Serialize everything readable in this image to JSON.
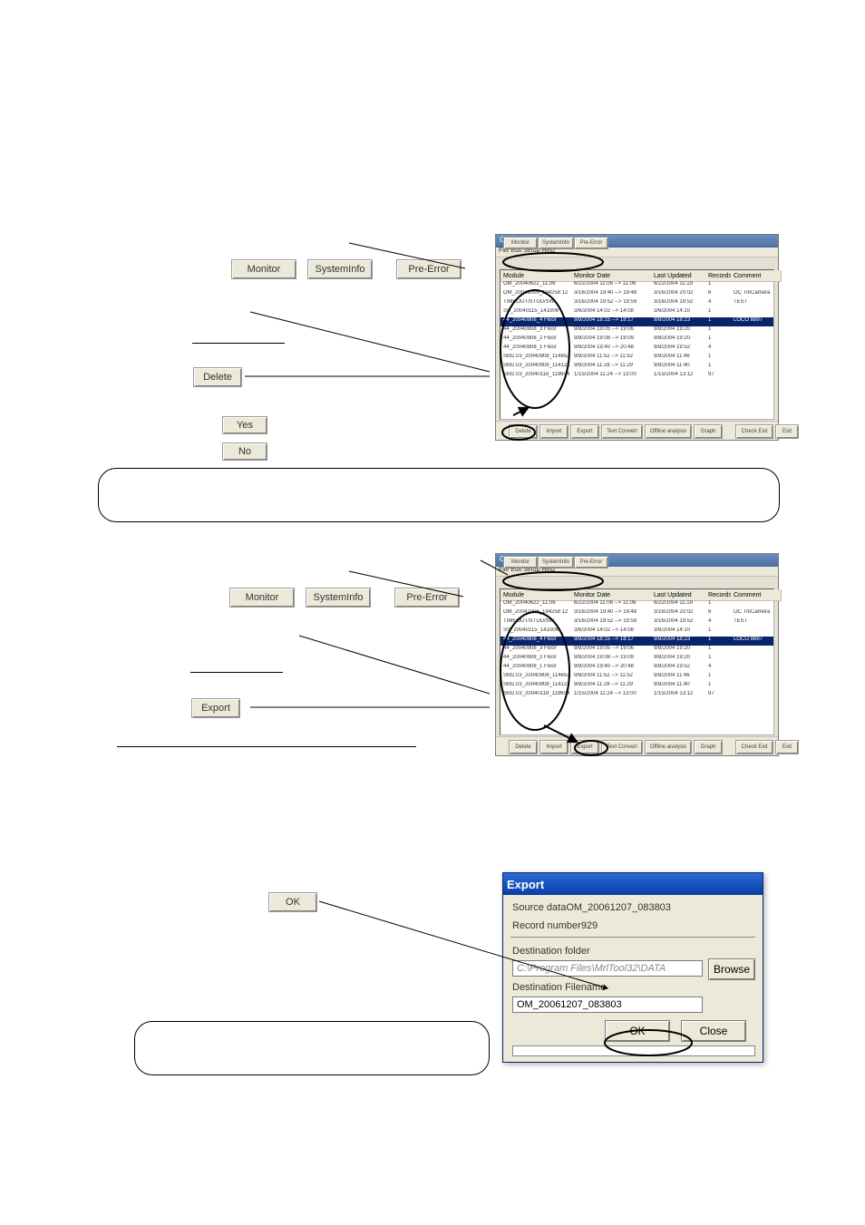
{
  "palette": {
    "button_bg": "#ece9d8",
    "titlebar_gradient": [
      "#2a6ad4",
      "#0a3da6"
    ],
    "selection": "#0a246a",
    "border": "#9a9a9a"
  },
  "section_delete": {
    "tabs": {
      "monitor": "Monitor",
      "systeminfo": "SystemInfo",
      "preerror": "Pre-Error"
    },
    "yn": {
      "yes": "Yes",
      "no": "No"
    },
    "delete": "Delete",
    "app": {
      "title": "Offline Analysis",
      "menu": "File  Edit  Setup  Help",
      "tabs": {
        "monitor": "Monitor",
        "systeminfo": "SystemInfo",
        "preerror": "Pre-Error"
      },
      "columns": {
        "module": "Module",
        "monitor_date": "Monitor Date",
        "last_update": "Last Updated",
        "records": "Records",
        "comment": "Comment"
      },
      "rows": [
        {
          "mod": "OM_20040622_11:06",
          "date": "6/22/2004 11:06 --> 11:06",
          "last": "6/22/2004 11:19",
          "rec": "1",
          "cmt": ""
        },
        {
          "mod": "OM_20041006_194258 12",
          "date": "3/16/2004 19:40 --> 19:48",
          "last": "3/16/2004 20:02",
          "rec": "6",
          "cmt": "OC TrkCamera"
        },
        {
          "mod": "TIMEOUT/STUD/SW",
          "date": "3/16/2004 19:52 --> 19:59",
          "last": "3/16/2004 19:52",
          "rec": "4",
          "cmt": "TEST"
        },
        {
          "mod": "SS_20040115_141006",
          "date": "3/6/2004 14:02 --> 14:08",
          "last": "3/6/2004 14:10",
          "rec": "1",
          "cmt": ""
        },
        {
          "mod": "44_20040908_4 Floor",
          "date": "9/8/2004 18:15 --> 18:17",
          "last": "9/8/2004 18:23",
          "rec": "1",
          "cmt": "LOCO 8897",
          "sel": true
        },
        {
          "mod": "44_20040908_3 Floor",
          "date": "9/8/2004 19:05 --> 19:06",
          "last": "9/8/2004 19:20",
          "rec": "1",
          "cmt": ""
        },
        {
          "mod": "44_20040908_2 Floor",
          "date": "9/8/2004 19:08 --> 19:09",
          "last": "9/8/2004 19:20",
          "rec": "1",
          "cmt": ""
        },
        {
          "mod": "44_20040908_1 Floor",
          "date": "9/8/2004 19:40 --> 20:48",
          "last": "9/8/2004 19:52",
          "rec": "4",
          "cmt": ""
        },
        {
          "mod": "SM2.03_20040908_114652",
          "date": "9/8/2004 11:52 --> 11:52",
          "last": "9/8/2004 11:46",
          "rec": "1",
          "cmt": ""
        },
        {
          "mod": "SM2.03_20040908_114121",
          "date": "9/8/2004 11:28 --> 11:29",
          "last": "9/8/2004 11:40",
          "rec": "1",
          "cmt": ""
        },
        {
          "mod": "SM2.03_20040118_119604",
          "date": "1/15/2004 11:24 --> 13:00",
          "last": "1/15/2004 13:12",
          "rec": "97",
          "cmt": ""
        }
      ],
      "bottom_buttons": [
        "Delete",
        "Import",
        "Export",
        "Text Convert",
        "Offline analysis",
        "Graph",
        "Check Exit",
        "Exit"
      ]
    }
  },
  "section_export": {
    "tabs": {
      "monitor": "Monitor",
      "systeminfo": "SystemInfo",
      "preerror": "Pre-Error"
    },
    "export": "Export",
    "app": {
      "title": "Offline Analysis",
      "menu": "File  Edit  Setup  Help",
      "tabs": {
        "monitor": "Monitor",
        "systeminfo": "SystemInfo",
        "preerror": "Pre-Error"
      },
      "columns": {
        "module": "Module",
        "monitor_date": "Monitor Date",
        "last_update": "Last Updated",
        "records": "Records",
        "comment": "Comment"
      },
      "rows": [
        {
          "mod": "OM_20040622_11:06",
          "date": "6/22/2004 11:06 --> 11:06",
          "last": "6/22/2004 11:19",
          "rec": "1",
          "cmt": ""
        },
        {
          "mod": "OM_20041006_194258 12",
          "date": "3/16/2004 19:40 --> 19:48",
          "last": "3/16/2004 20:02",
          "rec": "6",
          "cmt": "OC TrkCamera"
        },
        {
          "mod": "TIMEOUT/STUD/SW",
          "date": "3/16/2004 19:52 --> 19:59",
          "last": "3/16/2004 19:52",
          "rec": "4",
          "cmt": "TEST"
        },
        {
          "mod": "SS_20040115_141006",
          "date": "3/6/2004 14:02 --> 14:08",
          "last": "3/6/2004 14:10",
          "rec": "1",
          "cmt": ""
        },
        {
          "mod": "44_20040908_4 Floor",
          "date": "9/8/2004 18:15 --> 18:17",
          "last": "9/8/2004 18:23",
          "rec": "1",
          "cmt": "LOCO 8897",
          "sel": true
        },
        {
          "mod": "44_20040908_3 Floor",
          "date": "9/8/2004 19:05 --> 19:06",
          "last": "9/8/2004 19:20",
          "rec": "1",
          "cmt": ""
        },
        {
          "mod": "44_20040908_2 Floor",
          "date": "9/8/2004 19:08 --> 19:09",
          "last": "9/8/2004 19:20",
          "rec": "1",
          "cmt": ""
        },
        {
          "mod": "44_20040908_1 Floor",
          "date": "9/8/2004 19:40 --> 20:48",
          "last": "9/8/2004 19:52",
          "rec": "4",
          "cmt": ""
        },
        {
          "mod": "SM2.03_20040908_114652",
          "date": "9/8/2004 11:52 --> 11:52",
          "last": "9/8/2004 11:46",
          "rec": "1",
          "cmt": ""
        },
        {
          "mod": "SM2.03_20040908_114121",
          "date": "9/8/2004 11:28 --> 11:29",
          "last": "9/8/2004 11:40",
          "rec": "1",
          "cmt": ""
        },
        {
          "mod": "SM2.03_20040118_119604",
          "date": "1/15/2004 11:24 --> 13:00",
          "last": "1/15/2004 13:12",
          "rec": "97",
          "cmt": ""
        }
      ],
      "bottom_buttons": [
        "Delete",
        "Import",
        "Export",
        "Text Convert",
        "Offline analysis",
        "Graph",
        "Check Exit",
        "Exit"
      ]
    }
  },
  "section_dialog": {
    "ok_left": "OK",
    "title": "Export",
    "source_label": "Source dataOM_20061207_083803",
    "record_label": "Record number929",
    "dest_folder_label": "Destination folder",
    "dest_folder_value": "C:\\Program Files\\MrlTool32\\DATA",
    "browse": "Browse",
    "dest_filename_label": "Destination Filename",
    "dest_filename_value": "OM_20061207_083803",
    "ok": "OK",
    "close": "Close"
  }
}
